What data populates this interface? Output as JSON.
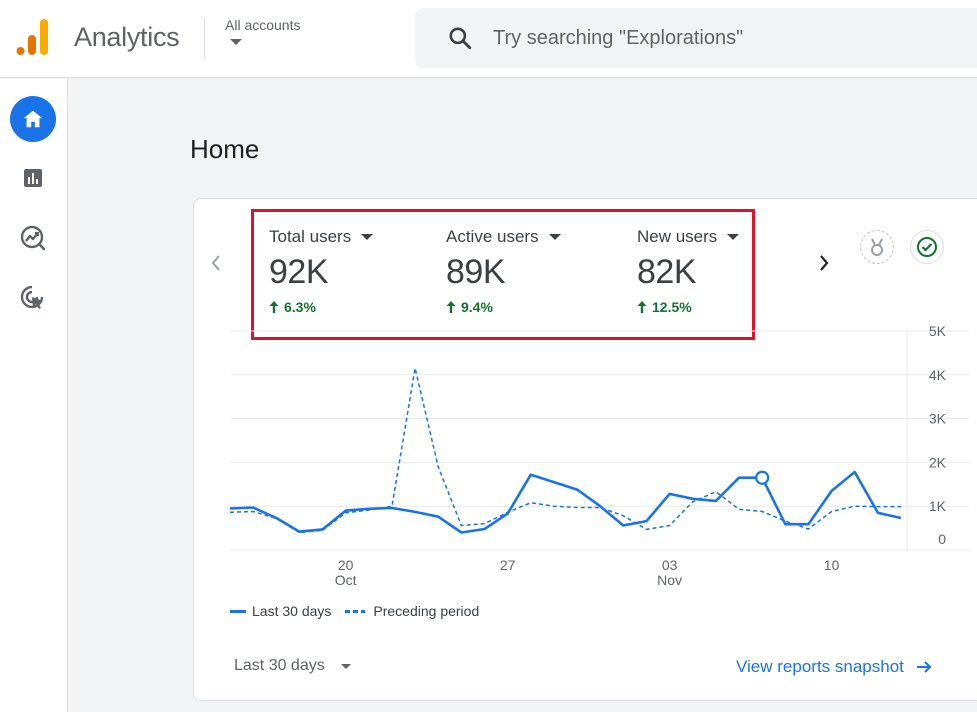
{
  "header": {
    "app_title": "Analytics",
    "accounts_label": "All accounts",
    "search_placeholder": "Try searching \"Explorations\""
  },
  "sidebar": {
    "items": [
      {
        "name": "home",
        "icon": "home-icon",
        "active": true
      },
      {
        "name": "reports",
        "icon": "bar-chart-icon",
        "active": false
      },
      {
        "name": "explore",
        "icon": "explore-icon",
        "active": false
      },
      {
        "name": "advertising",
        "icon": "target-cursor-icon",
        "active": false
      }
    ]
  },
  "page": {
    "title": "Home"
  },
  "metrics": [
    {
      "label": "Total users",
      "value": "92K",
      "change": "6.3%"
    },
    {
      "label": "Active users",
      "value": "89K",
      "change": "9.4%"
    },
    {
      "label": "New users",
      "value": "82K",
      "change": "12.5%"
    }
  ],
  "chart_data": {
    "type": "line",
    "y_ticks": [
      "5K",
      "4K",
      "3K",
      "2K",
      "1K",
      "0"
    ],
    "x_ticks": [
      {
        "day": "20",
        "month": "Oct"
      },
      {
        "day": "27",
        "month": ""
      },
      {
        "day": "03",
        "month": "Nov"
      },
      {
        "day": "10",
        "month": ""
      }
    ],
    "ylim": [
      0,
      5000
    ],
    "series": [
      {
        "name": "Last 30 days",
        "style": "solid",
        "color": "#1a73e8",
        "values": [
          950,
          970,
          730,
          420,
          470,
          900,
          940,
          960,
          870,
          760,
          400,
          480,
          830,
          1720,
          1550,
          1380,
          1000,
          560,
          660,
          1280,
          1170,
          1120,
          1650,
          1650,
          590,
          590,
          1350,
          1780,
          850,
          730
        ]
      },
      {
        "name": "Preceding period",
        "style": "dashed",
        "color": "#1a73e8",
        "values": [
          860,
          880,
          720,
          400,
          450,
          850,
          910,
          1000,
          4150,
          1900,
          560,
          600,
          860,
          1080,
          1000,
          970,
          970,
          780,
          470,
          560,
          1100,
          1330,
          930,
          880,
          660,
          480,
          880,
          1000,
          990,
          990
        ]
      }
    ],
    "highlight_index": 23
  },
  "legend": {
    "current": "Last 30 days",
    "previous": "Preceding period"
  },
  "footer": {
    "range_label": "Last 30 days",
    "snapshot_link": "View reports snapshot"
  },
  "colors": {
    "accent": "#1a73e8",
    "positive": "#137333",
    "highlight_border": "#e0112a"
  }
}
